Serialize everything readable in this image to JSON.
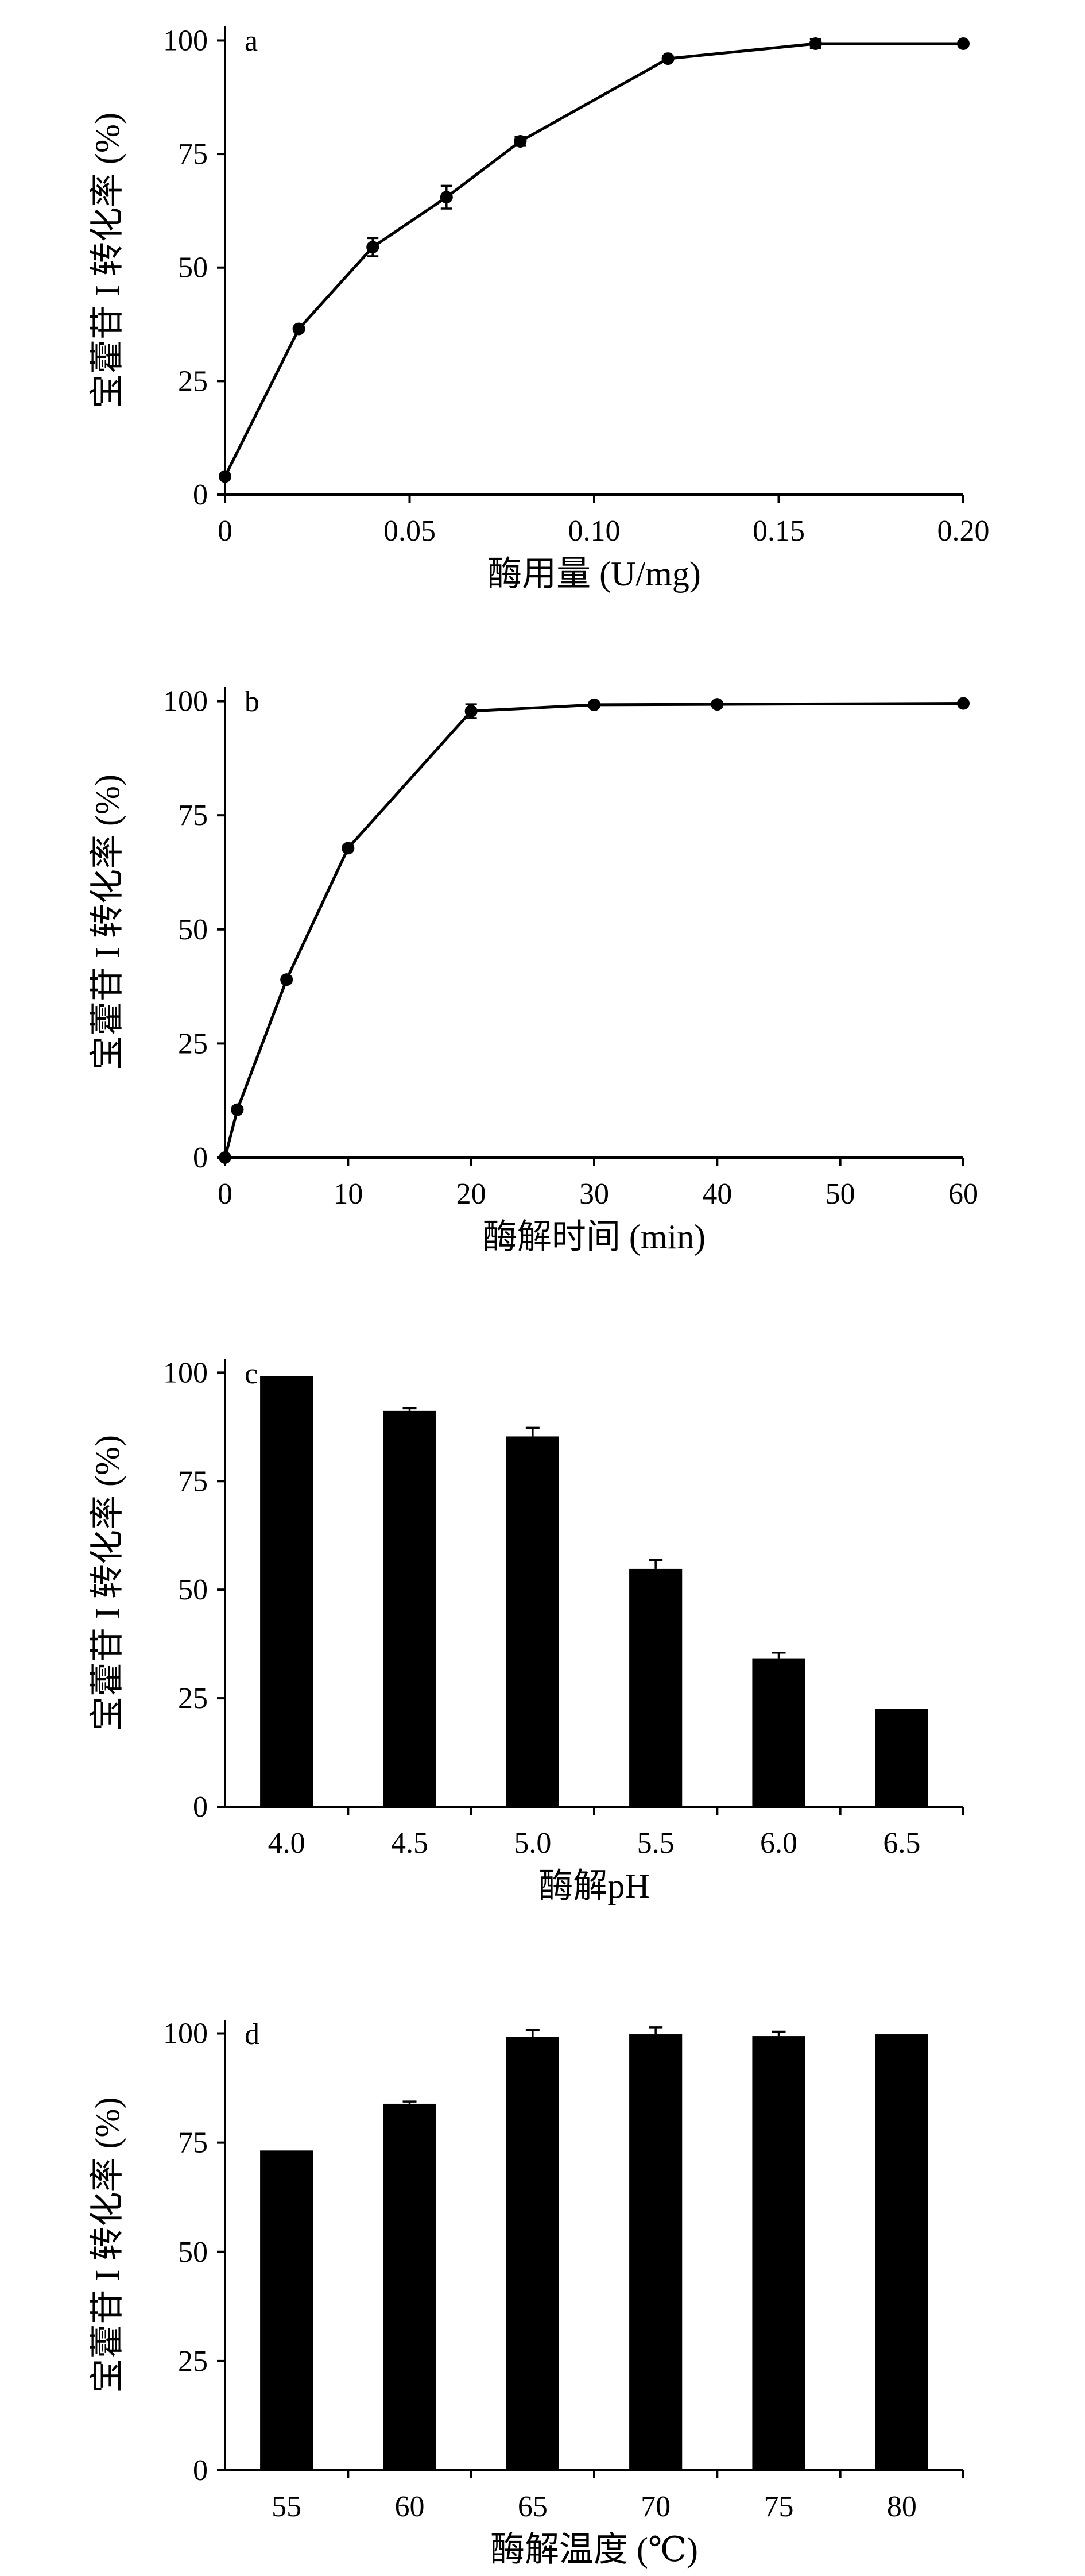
{
  "chart_data": [
    {
      "panel": "a",
      "type": "line",
      "title": "",
      "xlabel": "酶用量 (U/mg)",
      "ylabel": "宝藿苷 I 转化率 (%)",
      "xlim": [
        0,
        0.2
      ],
      "ylim": [
        0,
        100
      ],
      "xticks": [
        {
          "value": 0,
          "label": "0"
        },
        {
          "value": 0.05,
          "label": "0.05"
        },
        {
          "value": 0.1,
          "label": "0.10"
        },
        {
          "value": 0.15,
          "label": "0.15"
        },
        {
          "value": 0.2,
          "label": "0.20"
        }
      ],
      "yticks": [
        {
          "value": 0,
          "label": "0"
        },
        {
          "value": 25,
          "label": "25"
        },
        {
          "value": 50,
          "label": "50"
        },
        {
          "value": 75,
          "label": "75"
        },
        {
          "value": 100,
          "label": "100"
        }
      ],
      "grid": false,
      "series": [
        {
          "x": [
            0,
            0.02,
            0.04,
            0.06,
            0.08,
            0.12,
            0.16,
            0.2
          ],
          "y": [
            4,
            36.5,
            54.5,
            65.5,
            77.8,
            96,
            99.3,
            99.3
          ],
          "error": [
            0,
            0.5,
            2,
            2.5,
            1,
            0.5,
            1,
            0
          ]
        }
      ]
    },
    {
      "panel": "b",
      "type": "line",
      "title": "",
      "xlabel": "酶解时间 (min)",
      "ylabel": "宝藿苷 I 转化率 (%)",
      "xlim": [
        0,
        60
      ],
      "ylim": [
        0,
        100
      ],
      "xticks": [
        {
          "value": 0,
          "label": "0"
        },
        {
          "value": 10,
          "label": "10"
        },
        {
          "value": 20,
          "label": "20"
        },
        {
          "value": 30,
          "label": "30"
        },
        {
          "value": 40,
          "label": "40"
        },
        {
          "value": 50,
          "label": "50"
        },
        {
          "value": 60,
          "label": "60"
        }
      ],
      "yticks": [
        {
          "value": 0,
          "label": "0"
        },
        {
          "value": 25,
          "label": "25"
        },
        {
          "value": 50,
          "label": "50"
        },
        {
          "value": 75,
          "label": "75"
        },
        {
          "value": 100,
          "label": "100"
        }
      ],
      "grid": false,
      "series": [
        {
          "x": [
            0,
            1,
            5,
            10,
            20,
            30,
            40,
            60
          ],
          "y": [
            0,
            10.5,
            39,
            67.8,
            97.8,
            99.2,
            99.3,
            99.5
          ],
          "error": [
            0,
            0.5,
            0.5,
            0.5,
            1.5,
            0.3,
            0.3,
            0.3
          ]
        }
      ]
    },
    {
      "panel": "c",
      "type": "bar",
      "title": "",
      "xlabel": "酶解pH",
      "ylabel": "宝藿苷 I 转化率 (%)",
      "ylim": [
        0,
        100
      ],
      "yticks": [
        {
          "value": 0,
          "label": "0"
        },
        {
          "value": 25,
          "label": "25"
        },
        {
          "value": 50,
          "label": "50"
        },
        {
          "value": 75,
          "label": "75"
        },
        {
          "value": 100,
          "label": "100"
        }
      ],
      "grid": false,
      "categories": [
        "4.0",
        "4.5",
        "5.0",
        "5.5",
        "6.0",
        "6.5"
      ],
      "values": [
        99.2,
        91.2,
        85.3,
        54.8,
        34.2,
        22.5
      ],
      "errors": [
        0,
        0.6,
        2,
        2,
        1.3,
        0
      ]
    },
    {
      "panel": "d",
      "type": "bar",
      "title": "",
      "xlabel": "酶解温度 (℃)",
      "ylabel": "宝藿苷 I 转化率 (%)",
      "ylim": [
        0,
        100
      ],
      "yticks": [
        {
          "value": 0,
          "label": "0"
        },
        {
          "value": 25,
          "label": "25"
        },
        {
          "value": 50,
          "label": "50"
        },
        {
          "value": 75,
          "label": "75"
        },
        {
          "value": 100,
          "label": "100"
        }
      ],
      "grid": false,
      "categories": [
        "55",
        "60",
        "65",
        "70",
        "75",
        "80"
      ],
      "values": [
        73.2,
        83.9,
        99.2,
        99.8,
        99.4,
        99.8
      ],
      "errors": [
        0,
        0.5,
        1.6,
        1.6,
        1,
        0
      ]
    }
  ]
}
